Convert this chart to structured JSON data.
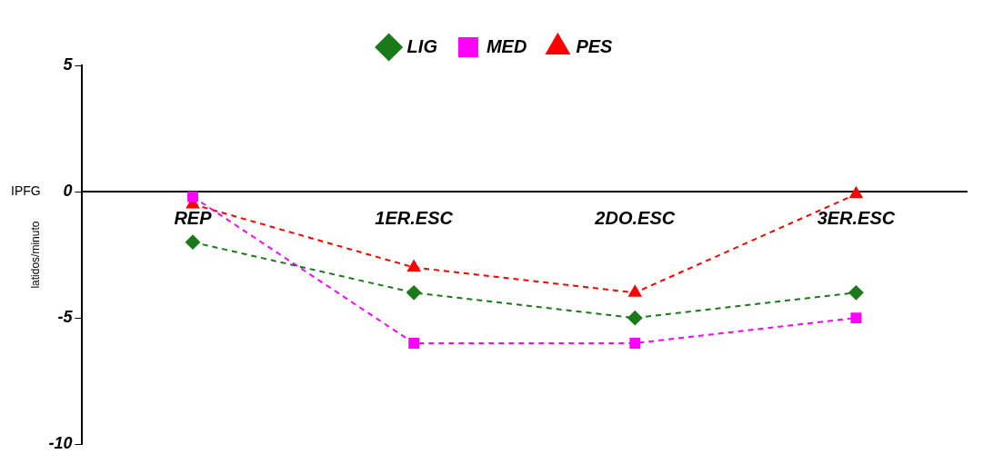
{
  "chart_data": {
    "type": "line",
    "ylabel": "latidos/minuto",
    "annotations": [
      "IPFG"
    ],
    "categories": [
      "REP",
      "1ER.ESC",
      "2DO.ESC",
      "3ER.ESC"
    ],
    "series": [
      {
        "name": "LIG",
        "color": "#1a7a1a",
        "marker": "diamond",
        "values": [
          -2,
          -4,
          -5,
          -4
        ]
      },
      {
        "name": "MED",
        "color": "#ff00ff",
        "marker": "square",
        "values": [
          -0.2,
          -6,
          -6,
          -5
        ]
      },
      {
        "name": "PES",
        "color": "#ff0000",
        "marker": "triangle",
        "values": [
          -0.5,
          -3,
          -4,
          -0.1
        ]
      }
    ],
    "ylim": [
      -10,
      5
    ],
    "yticks": [
      -10,
      -5,
      0,
      5
    ],
    "grid": false,
    "legend": "top",
    "line_style": "dashed"
  }
}
